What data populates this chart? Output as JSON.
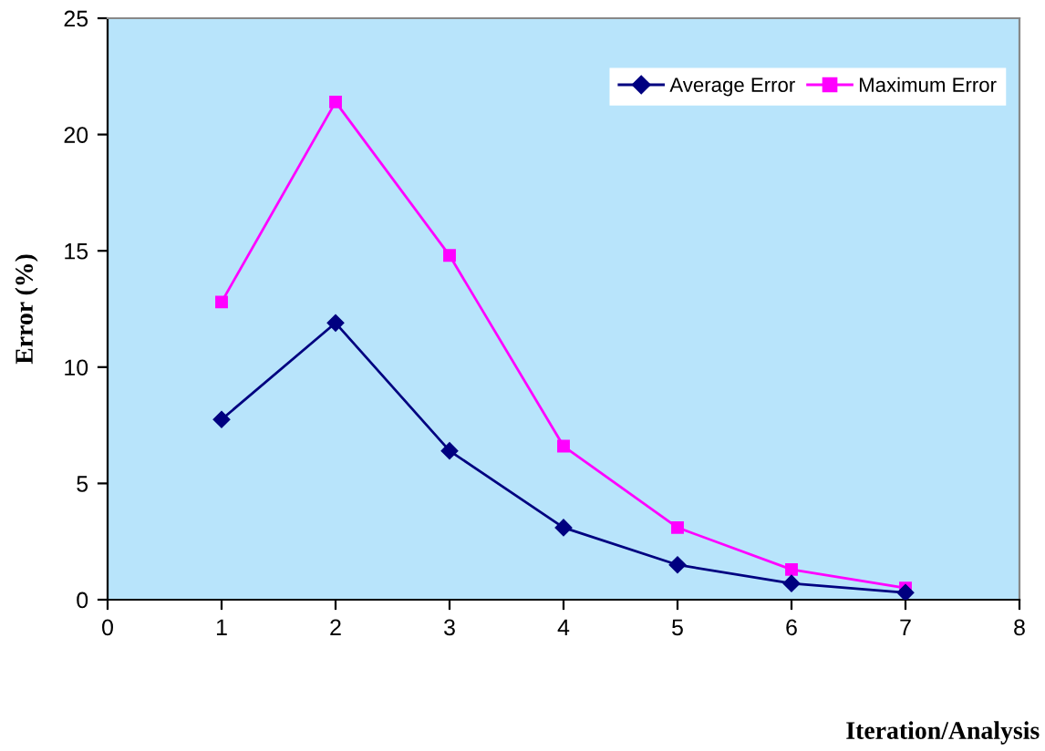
{
  "chart_data": {
    "type": "line",
    "xlabel": "Iteration/Analysis",
    "ylabel": "Error (%)",
    "x": [
      1,
      2,
      3,
      4,
      5,
      6,
      7
    ],
    "series": [
      {
        "name": "Average Error",
        "color": "#000080",
        "marker": "diamond",
        "values": [
          7.75,
          11.9,
          6.4,
          3.1,
          1.5,
          0.7,
          0.3
        ]
      },
      {
        "name": "Maximum Error",
        "color": "#ff00ff",
        "marker": "square",
        "values": [
          12.8,
          21.4,
          14.8,
          6.6,
          3.1,
          1.3,
          0.5
        ]
      }
    ],
    "xlim": [
      0,
      8
    ],
    "xticks": [
      0,
      1,
      2,
      3,
      4,
      5,
      6,
      7,
      8
    ],
    "ylim": [
      0,
      25
    ],
    "yticks": [
      0,
      5,
      10,
      15,
      20,
      25
    ],
    "grid": false,
    "legend": "top right",
    "line_style": "solid"
  }
}
